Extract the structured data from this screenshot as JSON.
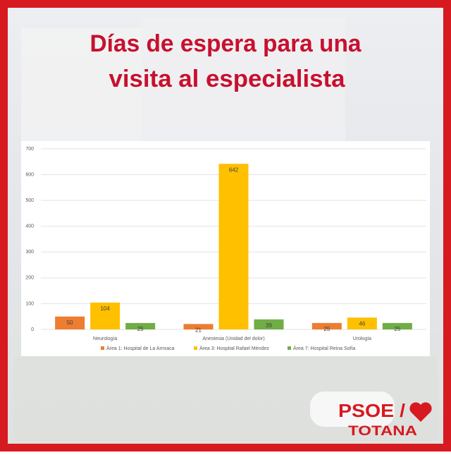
{
  "chart_data": {
    "type": "bar",
    "title": [
      "Días de espera para una",
      "visita al especialista"
    ],
    "categories": [
      "Neurología",
      "Anestesia (Unidad del dolor)",
      "Urología"
    ],
    "series": [
      {
        "name": "Área 1: Hospital de La Arrixaca",
        "color": "#ed7d31",
        "values": [
          50,
          21,
          25
        ]
      },
      {
        "name": "Área 3: Hospital Rafael Méndez",
        "color": "#ffc000",
        "values": [
          104,
          642,
          46
        ]
      },
      {
        "name": "Área 7: Hospital Reina Sofía",
        "color": "#70ad47",
        "values": [
          25,
          39,
          25
        ]
      }
    ],
    "ylim": [
      0,
      700
    ],
    "yticks": [
      0,
      100,
      200,
      300,
      400,
      500,
      600,
      700
    ],
    "grid": true,
    "legend": "bottom"
  },
  "logo": {
    "name": "PSOE /",
    "place": "TOTANA"
  }
}
